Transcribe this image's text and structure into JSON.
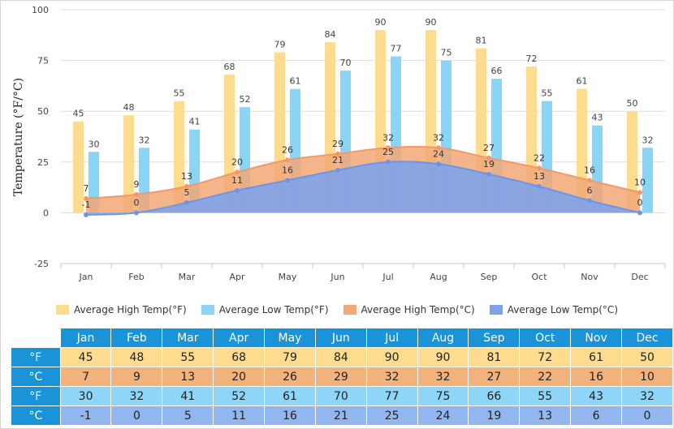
{
  "chart_data": {
    "type": "bar",
    "categories": [
      "Jan",
      "Feb",
      "Mar",
      "Apr",
      "May",
      "Jun",
      "Jul",
      "Aug",
      "Sep",
      "Oct",
      "Nov",
      "Dec"
    ],
    "series": [
      {
        "name": "Average High Temp(°F)",
        "kind": "bar",
        "color": "#fddc8f",
        "values": [
          45,
          48,
          55,
          68,
          79,
          84,
          90,
          90,
          81,
          72,
          61,
          50
        ]
      },
      {
        "name": "Average Low Temp(°F)",
        "kind": "bar",
        "color": "#8ad4f6",
        "values": [
          30,
          32,
          41,
          52,
          61,
          70,
          77,
          75,
          66,
          55,
          43,
          32
        ]
      },
      {
        "name": "Average High Temp(°C)",
        "kind": "area",
        "color": "#f2a877",
        "line": "#f0996a",
        "values": [
          7,
          9,
          13,
          20,
          26,
          29,
          32,
          32,
          27,
          22,
          16,
          10
        ]
      },
      {
        "name": "Average Low Temp(°C)",
        "kind": "area",
        "color": "#7fa3ea",
        "line": "#6b95ea",
        "values": [
          -1,
          0,
          5,
          11,
          16,
          21,
          25,
          24,
          19,
          13,
          6,
          0
        ]
      }
    ],
    "ylabel": "Temperature (°F/°C)",
    "ylim": [
      -25,
      100
    ],
    "yticks": [
      -25,
      0,
      25,
      50,
      75,
      100
    ],
    "grid": true,
    "legend": "bottom"
  },
  "table": {
    "row_units": [
      "°F",
      "°C",
      "°F",
      "°C"
    ]
  }
}
